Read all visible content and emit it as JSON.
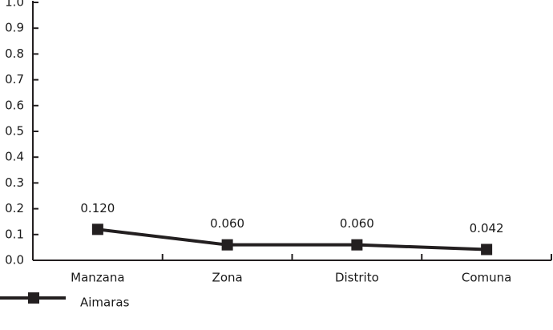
{
  "chart_data": {
    "type": "line",
    "categories": [
      "Manzana",
      "Zona",
      "Distrito",
      "Comuna"
    ],
    "series": [
      {
        "name": "Aimaras",
        "color": "#231f20",
        "values": [
          0.12,
          0.06,
          0.06,
          0.042
        ],
        "value_labels": [
          "0.120",
          "0.060",
          "0.060",
          "0.042"
        ]
      }
    ],
    "ylim": [
      0,
      1
    ],
    "yticks": [
      {
        "value": 0,
        "label": "0.0"
      },
      0.1,
      0.2,
      0.3,
      0.4,
      0.5,
      0.6,
      0.7,
      0.8,
      0.9,
      {
        "value": 1,
        "label": "1.0"
      }
    ],
    "legend": "bottom-left"
  }
}
